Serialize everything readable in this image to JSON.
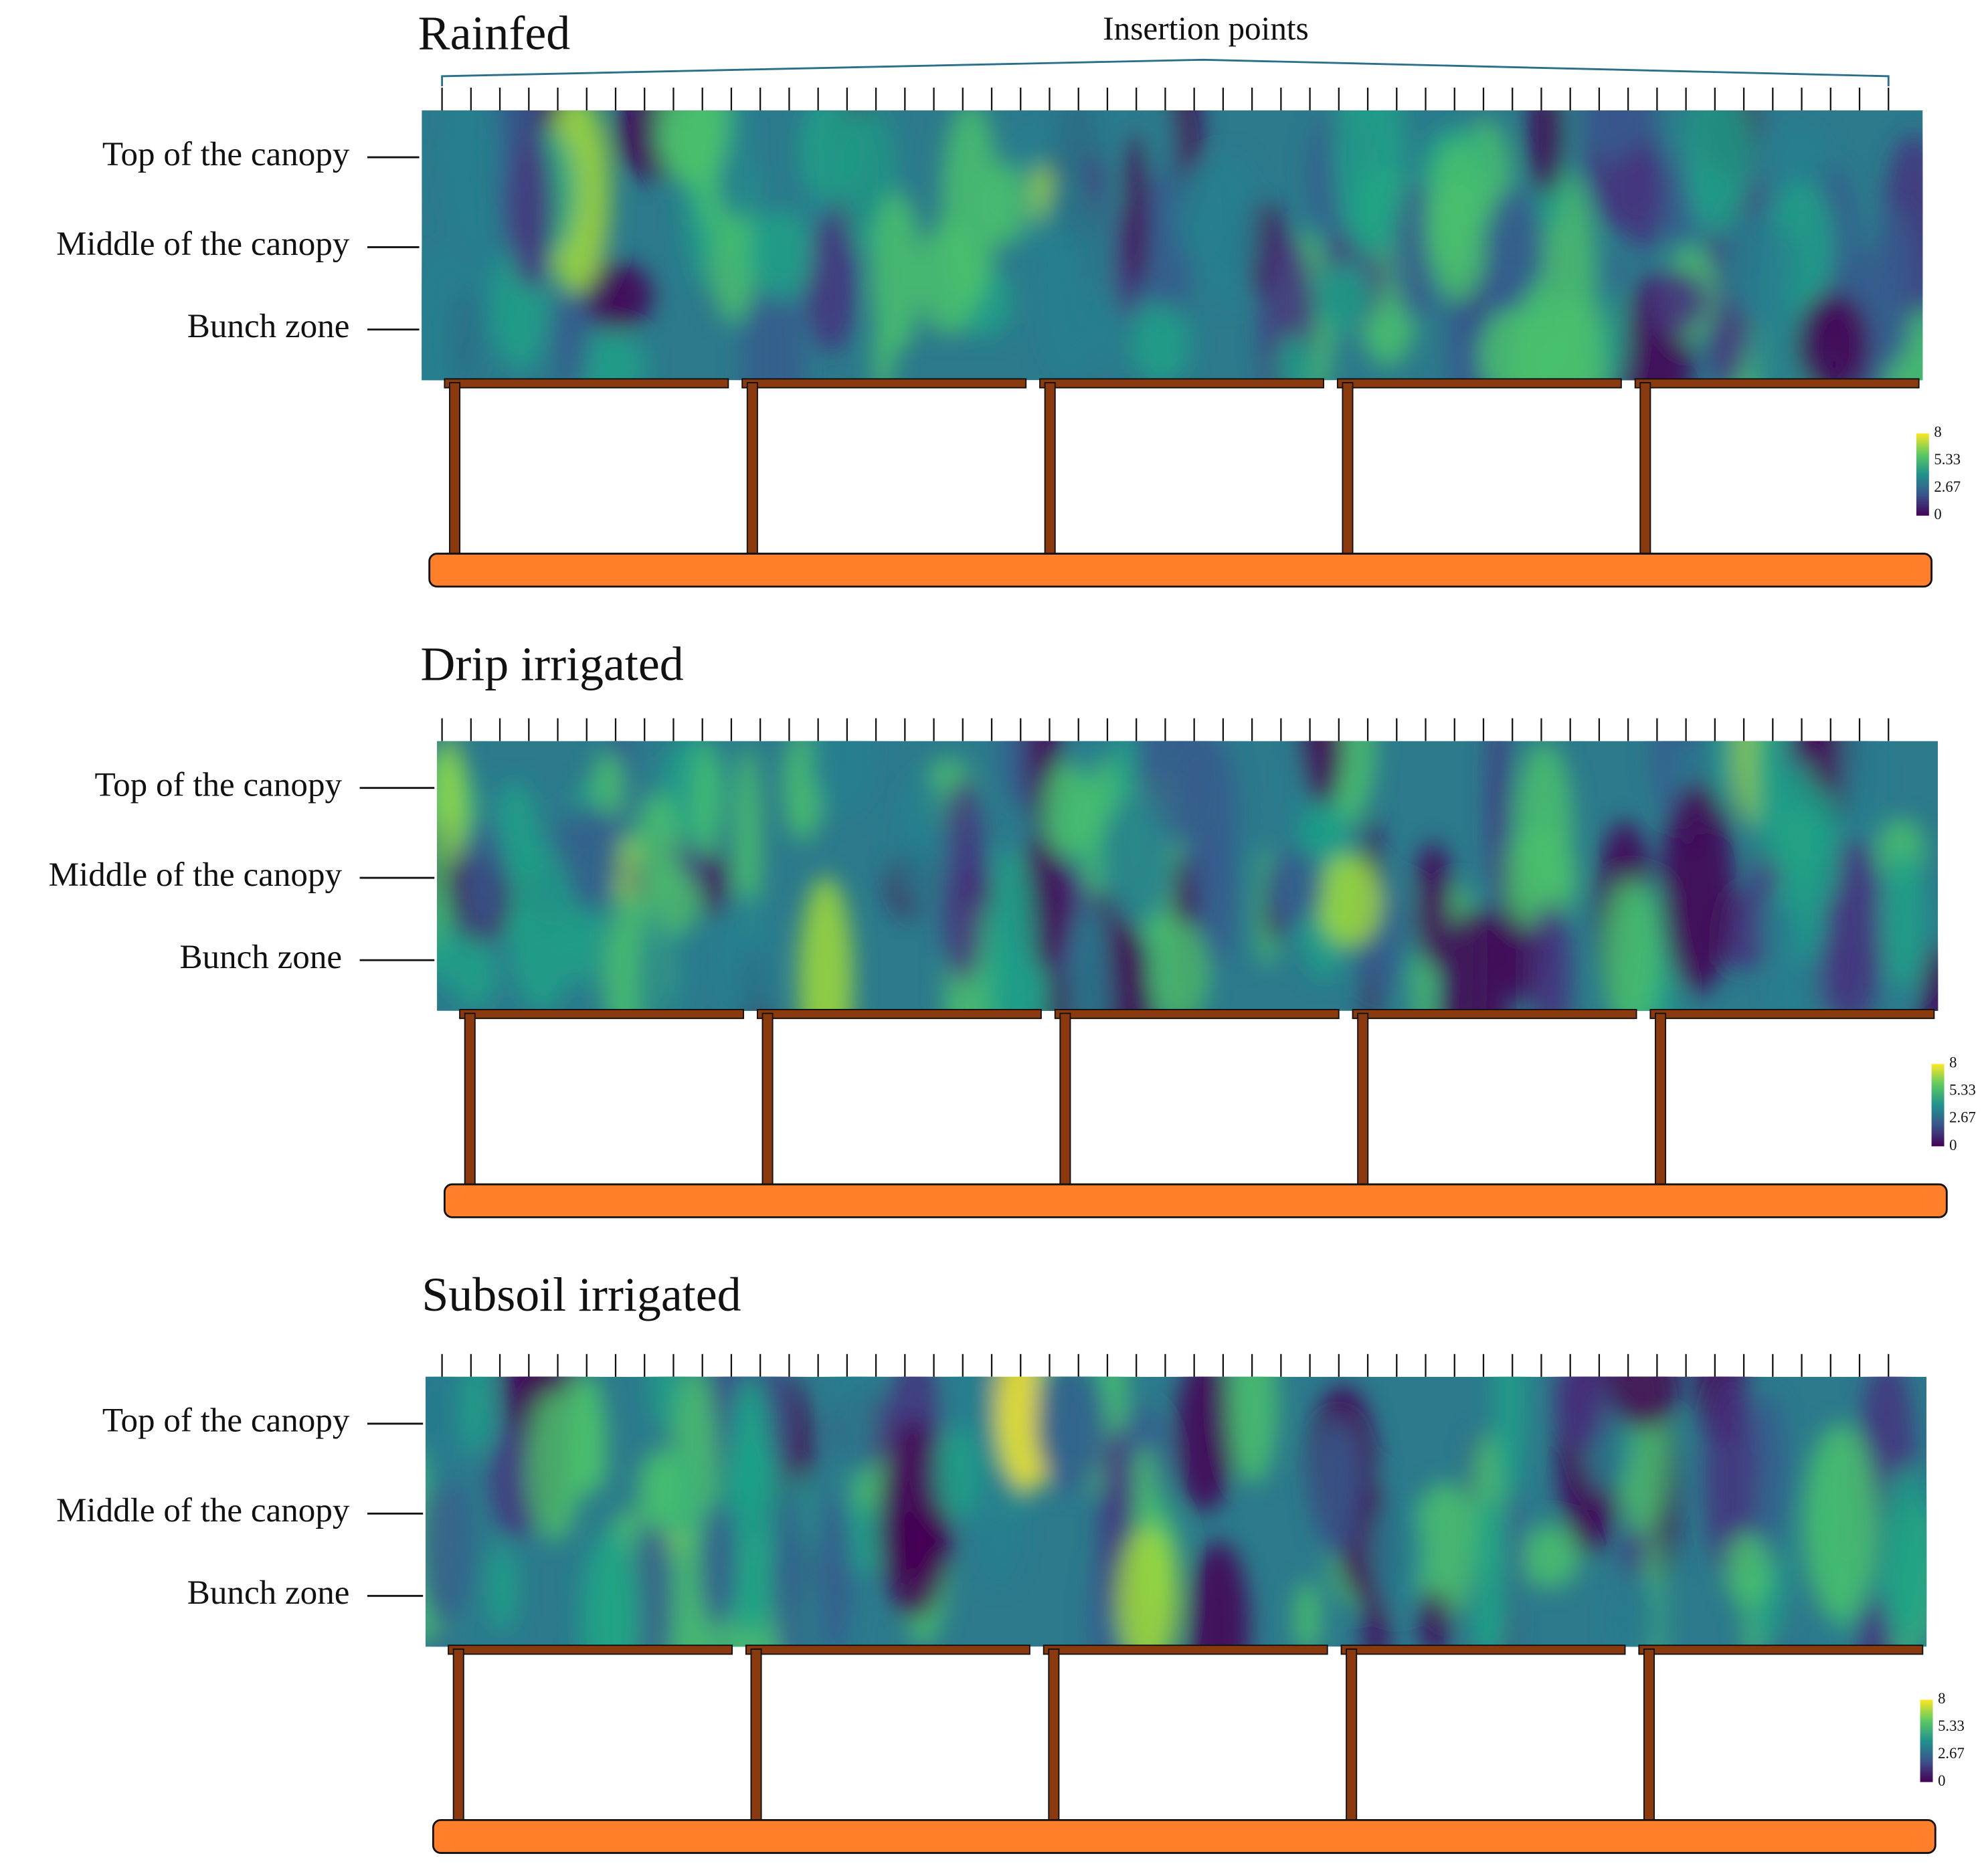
{
  "header": {
    "annotation": "Insertion points"
  },
  "panels": [
    {
      "title": "Rainfed",
      "row_labels": [
        "Top of the canopy",
        "Middle of the canopy",
        "Bunch zone"
      ],
      "colorbar_ticks": [
        8,
        5.33,
        2.67,
        0
      ]
    },
    {
      "title": "Drip irrigated",
      "row_labels": [
        "Top of the canopy",
        "Middle of the canopy",
        "Bunch zone"
      ],
      "colorbar_ticks": [
        8,
        5.33,
        2.67,
        0
      ]
    },
    {
      "title": "Subsoil irrigated",
      "row_labels": [
        "Top of the canopy",
        "Middle of the canopy",
        "Bunch zone"
      ],
      "colorbar_ticks": [
        8,
        5.33,
        2.67,
        0
      ]
    }
  ]
}
